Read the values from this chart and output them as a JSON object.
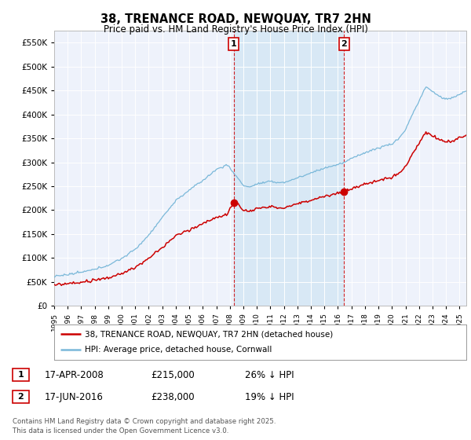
{
  "title": "38, TRENANCE ROAD, NEWQUAY, TR7 2HN",
  "subtitle": "Price paid vs. HM Land Registry's House Price Index (HPI)",
  "legend_house": "38, TRENANCE ROAD, NEWQUAY, TR7 2HN (detached house)",
  "legend_hpi": "HPI: Average price, detached house, Cornwall",
  "footnote": "Contains HM Land Registry data © Crown copyright and database right 2025.\nThis data is licensed under the Open Government Licence v3.0.",
  "annotation1_date": "17-APR-2008",
  "annotation1_price": "£215,000",
  "annotation1_hpi": "26% ↓ HPI",
  "annotation2_date": "17-JUN-2016",
  "annotation2_price": "£238,000",
  "annotation2_hpi": "19% ↓ HPI",
  "hpi_color": "#7ab8d9",
  "house_color": "#cc0000",
  "vline_color": "#cc0000",
  "shading_color": "#d8e8f5",
  "background_color": "#ffffff",
  "plot_bg_color": "#eef2fb",
  "grid_color": "#ffffff",
  "ylim": [
    0,
    575000
  ],
  "yticks": [
    0,
    50000,
    100000,
    150000,
    200000,
    250000,
    300000,
    350000,
    400000,
    450000,
    500000,
    550000
  ],
  "xlim_start": 1995.0,
  "xlim_end": 2025.5,
  "vline1_x": 2008.29,
  "vline2_x": 2016.46,
  "sale1_x": 2008.29,
  "sale1_y": 215000,
  "sale2_x": 2016.46,
  "sale2_y": 238000
}
